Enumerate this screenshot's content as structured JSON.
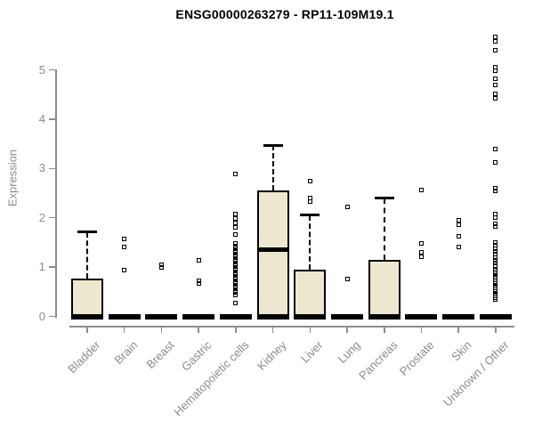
{
  "title": "ENSG00000263279 - RP11-109M19.1",
  "chart_data": {
    "type": "boxplot",
    "title": "ENSG00000263279 - RP11-109M19.1",
    "xlabel": "",
    "ylabel": "Expression",
    "ylim": [
      0,
      5.8
    ],
    "yticks": [
      0,
      1,
      2,
      3,
      4,
      5
    ],
    "grid": false,
    "legend": "none",
    "categories": [
      "Bladder",
      "Brain",
      "Breast",
      "Gastric",
      "Hematopoietic cells",
      "Kidney",
      "Liver",
      "Lung",
      "Pancreas",
      "Prostate",
      "Skin",
      "Unknown / Other"
    ],
    "boxes": [
      {
        "category": "Bladder",
        "whisker_low": 0,
        "q1": 0,
        "median": 0,
        "q3": 0.76,
        "whisker_high": 1.71,
        "outliers": []
      },
      {
        "category": "Brain",
        "whisker_low": 0,
        "q1": 0,
        "median": 0,
        "q3": 0,
        "whisker_high": 0,
        "outliers": [
          1.57,
          1.41,
          0.94
        ]
      },
      {
        "category": "Breast",
        "whisker_low": 0,
        "q1": 0,
        "median": 0,
        "q3": 0,
        "whisker_high": 0,
        "outliers": [
          1.04,
          0.99
        ]
      },
      {
        "category": "Gastric",
        "whisker_low": 0,
        "q1": 0,
        "median": 0,
        "q3": 0,
        "whisker_high": 0,
        "outliers": [
          1.14,
          0.72,
          0.67
        ]
      },
      {
        "category": "Hematopoietic cells",
        "whisker_low": 0,
        "q1": 0,
        "median": 0,
        "q3": 0,
        "whisker_high": 0,
        "outliers": [
          2.89,
          2.08,
          1.99,
          1.9,
          1.81,
          1.66,
          1.48,
          1.43,
          1.39,
          1.34,
          1.3,
          1.25,
          1.21,
          1.16,
          1.12,
          1.07,
          1.03,
          0.98,
          0.94,
          0.89,
          0.85,
          0.8,
          0.76,
          0.71,
          0.67,
          0.62,
          0.58,
          0.53,
          0.49,
          0.44,
          0.27
        ]
      },
      {
        "category": "Kidney",
        "whisker_low": 0,
        "q1": 0,
        "median": 1.35,
        "q3": 2.56,
        "whisker_high": 3.47,
        "outliers": []
      },
      {
        "category": "Liver",
        "whisker_low": 0,
        "q1": 0,
        "median": 0,
        "q3": 0.94,
        "whisker_high": 2.05,
        "outliers": [
          2.74,
          2.4,
          2.32
        ]
      },
      {
        "category": "Lung",
        "whisker_low": 0,
        "q1": 0,
        "median": 0,
        "q3": 0,
        "whisker_high": 0,
        "outliers": [
          2.22,
          0.76
        ]
      },
      {
        "category": "Pancreas",
        "whisker_low": 0,
        "q1": 0,
        "median": 0,
        "q3": 1.14,
        "whisker_high": 2.4,
        "outliers": []
      },
      {
        "category": "Prostate",
        "whisker_low": 0,
        "q1": 0,
        "median": 0,
        "q3": 0,
        "whisker_high": 0,
        "outliers": [
          2.56,
          1.48,
          1.3,
          1.21
        ]
      },
      {
        "category": "Skin",
        "whisker_low": 0,
        "q1": 0,
        "median": 0,
        "q3": 0,
        "whisker_high": 0,
        "outliers": [
          1.95,
          1.86,
          1.62,
          1.41
        ]
      },
      {
        "category": "Unknown / Other",
        "whisker_low": 0,
        "q1": 0,
        "median": 0,
        "q3": 0,
        "whisker_high": 0,
        "outliers": [
          5.67,
          5.58,
          5.4,
          5.05,
          4.98,
          4.82,
          4.69,
          4.51,
          4.43,
          3.39,
          3.12,
          2.6,
          2.54,
          2.08,
          2.0,
          1.88,
          1.82,
          1.5,
          1.44,
          1.38,
          1.32,
          1.26,
          1.2,
          1.14,
          1.08,
          1.03,
          0.94,
          0.9,
          0.86,
          0.82,
          0.78,
          0.74,
          0.7,
          0.66,
          0.62,
          0.58,
          0.54,
          0.5,
          0.46,
          0.42,
          0.38,
          0.34
        ]
      }
    ]
  },
  "colors": {
    "box_fill": "#EDE7CF",
    "box_stroke": "#000000",
    "median": "#000000",
    "outlier": "#000000",
    "axis": "#8C8C8C",
    "tick_label": "#8C8C8C",
    "title": "#000000",
    "background": "#FFFFFF"
  }
}
